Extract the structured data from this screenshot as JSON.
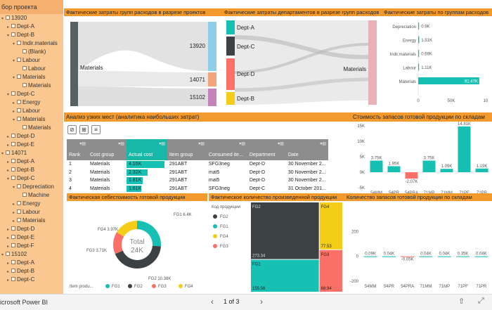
{
  "slicer": {
    "title": "бор проекта",
    "items": [
      {
        "t": "13920",
        "lvl": 0,
        "tw": "▾"
      },
      {
        "t": "Dept-A",
        "lvl": 1,
        "tw": "▸"
      },
      {
        "t": "Dept-B",
        "lvl": 1,
        "tw": "▾"
      },
      {
        "t": "Indir.materials",
        "lvl": 2,
        "tw": "▾"
      },
      {
        "t": "(Blank)",
        "lvl": 3,
        "tw": ""
      },
      {
        "t": "Labour",
        "lvl": 2,
        "tw": "▾"
      },
      {
        "t": "Labour",
        "lvl": 3,
        "tw": ""
      },
      {
        "t": "Materials",
        "lvl": 2,
        "tw": "▾"
      },
      {
        "t": "Materials",
        "lvl": 3,
        "tw": ""
      },
      {
        "t": "Dept-C",
        "lvl": 1,
        "tw": "▾"
      },
      {
        "t": "Energy",
        "lvl": 2,
        "tw": "▸"
      },
      {
        "t": "Labour",
        "lvl": 2,
        "tw": "▸"
      },
      {
        "t": "Materials",
        "lvl": 2,
        "tw": "▾"
      },
      {
        "t": "Materials",
        "lvl": 3,
        "tw": ""
      },
      {
        "t": "Dept-D",
        "lvl": 1,
        "tw": "▸"
      },
      {
        "t": "Dept-E",
        "lvl": 1,
        "tw": "▸"
      },
      {
        "t": "14071",
        "lvl": 0,
        "tw": "▾"
      },
      {
        "t": "Dept-A",
        "lvl": 1,
        "tw": "▸"
      },
      {
        "t": "Dept-B",
        "lvl": 1,
        "tw": "▸"
      },
      {
        "t": "Dept-C",
        "lvl": 1,
        "tw": "▾"
      },
      {
        "t": "Depreciation",
        "lvl": 2,
        "tw": "▾"
      },
      {
        "t": "Machine",
        "lvl": 3,
        "tw": ""
      },
      {
        "t": "Energy",
        "lvl": 2,
        "tw": "▸"
      },
      {
        "t": "Labour",
        "lvl": 2,
        "tw": "▸"
      },
      {
        "t": "Materials",
        "lvl": 2,
        "tw": "▸"
      },
      {
        "t": "Dept-D",
        "lvl": 1,
        "tw": "▸"
      },
      {
        "t": "Dept-E",
        "lvl": 1,
        "tw": "▸"
      },
      {
        "t": "Dept-F",
        "lvl": 1,
        "tw": "▸"
      },
      {
        "t": "15102",
        "lvl": 0,
        "tw": "▾"
      },
      {
        "t": "Dept-A",
        "lvl": 1,
        "tw": "▸"
      },
      {
        "t": "Dept-B",
        "lvl": 1,
        "tw": "▸"
      },
      {
        "t": "Dept-C",
        "lvl": 1,
        "tw": "▸"
      }
    ]
  },
  "headers": {
    "sankey1": "Фактические затраты групп расходов в разрезе проектов",
    "sankey2": "Фактические затраты департаментов в разрезе групп расходов",
    "bar_groups": "Фактические затраты по группам расходов",
    "table": "Анализ узких мест (аналитика наибольших затрат)",
    "stock_value": "Стоимость запасов готовой продукции по складам",
    "cost_fg": "Фактическая себестоимость готовой продукции",
    "qty_fg": "Фактическое количество произведенной продукции",
    "qty_stock": "Количество запасов готовой продукции по складам"
  },
  "sankey1": {
    "left": "Materials",
    "right": [
      "13920",
      "14071",
      "15102"
    ],
    "colors": [
      "#8ccfe6",
      "#f4a57a",
      "#c484b9"
    ]
  },
  "sankey2": {
    "depts": [
      "Dept-A",
      "Dept-C",
      "Dept-D",
      "Dept-B"
    ],
    "colors": [
      "#16c1b3",
      "#3c4244",
      "#fb7067",
      "#f4cd18"
    ],
    "right": "Materials"
  },
  "chart_data": [
    {
      "type": "bar",
      "orientation": "horizontal",
      "categories": [
        "Depreciation",
        "Energy",
        "Indir.materials",
        "Labour",
        "Materials"
      ],
      "values": [
        0.9,
        1.51,
        0.69,
        1.11,
        91.47
      ],
      "labels": [
        "0.9K",
        "1.51K",
        "0.69K",
        "1.11K",
        "91.47K"
      ],
      "xticks": [
        "0",
        "50K",
        "10"
      ],
      "color": "#16c1b3"
    },
    {
      "type": "bar",
      "categories": [
        "54MM",
        "54PR",
        "54PRA",
        "71MP",
        "71MM",
        "71PF",
        "71PR"
      ],
      "values": [
        3.75,
        1.95,
        -2.07,
        3.75,
        1.09,
        14.81,
        1.19
      ],
      "labels": [
        "3.75K",
        "1.95K",
        "-2.07K",
        "3.75K",
        "1.09K",
        "14.81K",
        "1.19K"
      ],
      "yticks": [
        "15K",
        "10K",
        "5K",
        "0K",
        "-5K"
      ],
      "ylim": [
        -5,
        15
      ],
      "colors": [
        "#16c1b3",
        "#16c1b3",
        "#fb7067",
        "#16c1b3",
        "#16c1b3",
        "#16c1b3",
        "#16c1b3"
      ]
    },
    {
      "type": "pie",
      "donut": true,
      "center_label": "Total",
      "center_value": "24K",
      "categories": [
        "FG1",
        "FG2",
        "FG3",
        "FG4"
      ],
      "values": [
        6.4,
        10.38,
        3.71,
        3.97
      ],
      "labels": [
        "FG1 6.4K",
        "FG2 10.38K",
        "FG3 3.71K",
        "FG4 3.97K"
      ],
      "legend_title": "Item produ...",
      "colors": [
        "#16c1b3",
        "#3c4244",
        "#fb7067",
        "#f4cd18"
      ]
    },
    {
      "type": "treemap",
      "legend_title": "Код продукции",
      "categories": [
        "FG2",
        "FG1",
        "FG4",
        "FG3"
      ],
      "values": [
        273.34,
        155.56,
        77.53,
        68.94
      ],
      "labels": [
        "273.34",
        "155.56",
        "77.53",
        "68.94"
      ],
      "colors": [
        "#3c4244",
        "#16c1b3",
        "#f4cd18",
        "#fb7067"
      ]
    },
    {
      "type": "bar",
      "categories": [
        "54MM",
        "54PR",
        "54PRA",
        "71MM",
        "71MP",
        "71PF",
        "71PR"
      ],
      "values": [
        0.09,
        0.04,
        -0.05,
        0.04,
        0.04,
        0.35,
        0.04
      ],
      "labels": [
        "0.09K",
        "0.04K",
        "-0.05K",
        "0.04K",
        "0.04K",
        "0.35K",
        "0.04K"
      ],
      "yticks": [
        "200",
        "0",
        "-200"
      ],
      "colors": [
        "#16c1b3",
        "#16c1b3",
        "#fb7067",
        "#16c1b3",
        "#16c1b3",
        "#16c1b3",
        "#16c1b3"
      ]
    }
  ],
  "table": {
    "columns": [
      "Rank",
      "Cost group",
      "Actual cost",
      "Item group",
      "Consumed ite...",
      "Department",
      "Date"
    ],
    "rows": [
      [
        "1",
        "Materials",
        "4.16K",
        "291ABT",
        "SFG3neg",
        "Dept-D",
        "30 November 2..."
      ],
      [
        "2",
        "Materials",
        "2.32K",
        "291ABT",
        "mat5",
        "Dept-D",
        "30 November 2..."
      ],
      [
        "3",
        "Materials",
        "1.81K",
        "291ABT",
        "mat5",
        "Dept-D",
        "30 November 2..."
      ],
      [
        "4",
        "Materials",
        "1.61K",
        "291ABT",
        "SFG3neg",
        "Dept-C",
        "31 October 201..."
      ],
      [
        "5",
        "Materials",
        "1.48K",
        "291ABT",
        "mat4cons",
        "Dept-D",
        "30 November 2..."
      ]
    ],
    "bar_values": [
      4.16,
      2.32,
      1.81,
      1.61,
      1.48
    ]
  },
  "bottom": {
    "app": "icrosoft Power BI",
    "page": "1 of 3"
  }
}
